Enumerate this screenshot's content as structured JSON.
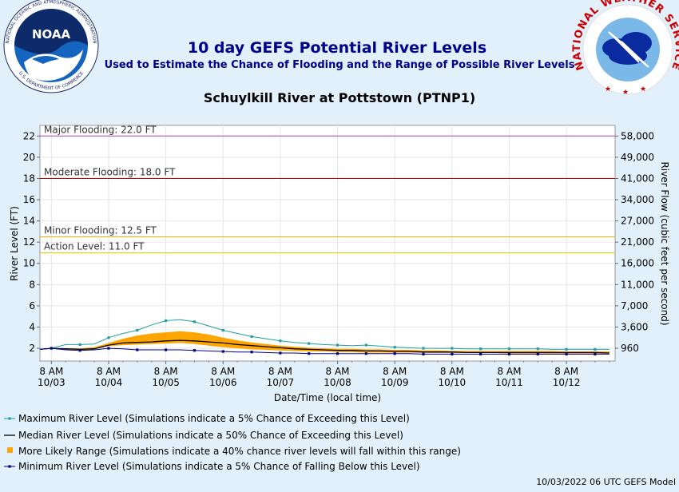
{
  "header": {
    "title": "10 day GEFS Potential River Levels",
    "subtitle": "Used to Estimate the Chance of Flooding and the Range of Possible River Levels",
    "noaa_text": "NOAA",
    "noaa_ring_top": "NATIONAL OCEANIC AND ATMOSPHERIC ADMINISTRATION",
    "noaa_ring_bottom": "U.S. DEPARTMENT OF COMMERCE",
    "nws_ring": "NATIONAL WEATHER SERVICE"
  },
  "footer": {
    "credit": "10/03/2022 06 UTC GEFS Model"
  },
  "colors": {
    "background": "#e1f0fb",
    "title": "#00008b",
    "range_fill": "#ffa500",
    "max_line": "#20a0a0",
    "median_line": "#000000",
    "min_line": "#00008b",
    "major": "#c040c0",
    "moderate": "#cc0000",
    "minor": "#ffb000",
    "action": "#e8d000"
  },
  "chart_data": {
    "type": "line",
    "title": "Schuylkill River at Pottstown (PTNP1)",
    "xlabel": "Date/Time (local time)",
    "ylabel": "River Level (FT)",
    "y2label": "River Flow (cubic feet per second)",
    "ylim": [
      0.8,
      23
    ],
    "yticks": [
      2,
      4,
      6,
      8,
      10,
      12,
      14,
      16,
      18,
      20,
      22
    ],
    "y2ticks": [
      {
        "level": 2,
        "label": "960"
      },
      {
        "level": 4,
        "label": "3,600"
      },
      {
        "level": 6,
        "label": "7,000"
      },
      {
        "level": 8,
        "label": "11,000"
      },
      {
        "level": 10,
        "label": "16,000"
      },
      {
        "level": 12,
        "label": "21,000"
      },
      {
        "level": 14,
        "label": "27,000"
      },
      {
        "level": 16,
        "label": "34,000"
      },
      {
        "level": 18,
        "label": "41,000"
      },
      {
        "level": 20,
        "label": "49,000"
      },
      {
        "level": 22,
        "label": "58,000"
      }
    ],
    "xlim": [
      -0.2,
      9.85
    ],
    "xticks": [
      {
        "x": 0,
        "time": "8 AM",
        "date": "10/03"
      },
      {
        "x": 1,
        "time": "8 AM",
        "date": "10/04"
      },
      {
        "x": 2,
        "time": "8 AM",
        "date": "10/05"
      },
      {
        "x": 3,
        "time": "8 AM",
        "date": "10/06"
      },
      {
        "x": 4,
        "time": "8 AM",
        "date": "10/07"
      },
      {
        "x": 5,
        "time": "8 AM",
        "date": "10/08"
      },
      {
        "x": 6,
        "time": "8 AM",
        "date": "10/09"
      },
      {
        "x": 7,
        "time": "8 AM",
        "date": "10/10"
      },
      {
        "x": 8,
        "time": "8 AM",
        "date": "10/11"
      },
      {
        "x": 9,
        "time": "8 AM",
        "date": "10/12"
      }
    ],
    "thresholds": [
      {
        "name": "Major Flooding",
        "label": "Major Flooding: 22.0 FT",
        "value": 22.0,
        "color": "#c040c0"
      },
      {
        "name": "Moderate Flooding",
        "label": "Moderate Flooding: 18.0 FT",
        "value": 18.0,
        "color": "#cc0000"
      },
      {
        "name": "Minor Flooding",
        "label": "Minor Flooding: 12.5 FT",
        "value": 12.5,
        "color": "#ffb000"
      },
      {
        "name": "Action Level",
        "label": "Action Level: 11.0 FT",
        "value": 11.0,
        "color": "#e8d000"
      }
    ],
    "x": [
      -0.2,
      0.0,
      0.25,
      0.5,
      0.75,
      1.0,
      1.25,
      1.5,
      1.75,
      2.0,
      2.25,
      2.5,
      2.75,
      3.0,
      3.25,
      3.5,
      3.75,
      4.0,
      4.25,
      4.5,
      4.75,
      5.0,
      5.25,
      5.5,
      5.75,
      6.0,
      6.25,
      6.5,
      6.75,
      7.0,
      7.25,
      7.5,
      7.75,
      8.0,
      8.25,
      8.5,
      8.75,
      9.0,
      9.25,
      9.5,
      9.75
    ],
    "series": [
      {
        "name": "Maximum River Level (Simulations indicate a 5% Chance of Exceeding this Level)",
        "role": "max",
        "values": [
          1.9,
          2.0,
          2.35,
          2.35,
          2.4,
          3.0,
          3.4,
          3.7,
          4.2,
          4.6,
          4.7,
          4.5,
          4.1,
          3.7,
          3.4,
          3.1,
          2.9,
          2.7,
          2.55,
          2.45,
          2.35,
          2.3,
          2.25,
          2.3,
          2.2,
          2.1,
          2.05,
          2.0,
          2.0,
          2.0,
          1.95,
          1.95,
          1.95,
          1.95,
          1.95,
          1.95,
          1.9,
          1.9,
          1.9,
          1.9,
          1.9
        ]
      },
      {
        "name": "Median River Level (Simulations indicate a 50% Chance of Exceeding this Level)",
        "role": "median",
        "values": [
          1.9,
          2.0,
          1.95,
          1.9,
          1.95,
          2.3,
          2.5,
          2.55,
          2.6,
          2.7,
          2.75,
          2.7,
          2.6,
          2.5,
          2.35,
          2.25,
          2.15,
          2.05,
          1.95,
          1.9,
          1.85,
          1.8,
          1.8,
          1.75,
          1.75,
          1.7,
          1.7,
          1.65,
          1.65,
          1.65,
          1.6,
          1.6,
          1.6,
          1.6,
          1.6,
          1.6,
          1.6,
          1.6,
          1.6,
          1.6,
          1.55
        ]
      },
      {
        "name": "More Likely Range (Simulations indicate a 40% chance river levels will fall within this range)",
        "role": "range",
        "lower": [
          1.9,
          2.0,
          1.9,
          1.85,
          1.9,
          2.2,
          2.3,
          2.35,
          2.4,
          2.45,
          2.5,
          2.4,
          2.25,
          2.1,
          2.0,
          1.9,
          1.85,
          1.8,
          1.75,
          1.7,
          1.7,
          1.65,
          1.65,
          1.6,
          1.6,
          1.6,
          1.6,
          1.55,
          1.55,
          1.55,
          1.55,
          1.55,
          1.55,
          1.5,
          1.5,
          1.5,
          1.5,
          1.5,
          1.5,
          1.5,
          1.5
        ],
        "upper": [
          1.9,
          2.0,
          2.0,
          2.0,
          2.1,
          2.5,
          2.9,
          3.2,
          3.4,
          3.5,
          3.6,
          3.5,
          3.3,
          3.0,
          2.75,
          2.55,
          2.4,
          2.25,
          2.15,
          2.05,
          2.0,
          1.95,
          1.95,
          1.9,
          1.9,
          1.85,
          1.85,
          1.8,
          1.8,
          1.75,
          1.75,
          1.75,
          1.75,
          1.75,
          1.75,
          1.75,
          1.75,
          1.7,
          1.7,
          1.7,
          1.7
        ]
      },
      {
        "name": "Minimum River Level (Simulations indicate a 5% Chance of Falling Below this Level)",
        "role": "min",
        "values": [
          1.9,
          2.0,
          1.85,
          1.8,
          1.85,
          2.0,
          1.95,
          1.85,
          1.85,
          1.85,
          1.85,
          1.8,
          1.75,
          1.7,
          1.65,
          1.65,
          1.6,
          1.55,
          1.55,
          1.5,
          1.5,
          1.5,
          1.5,
          1.5,
          1.5,
          1.5,
          1.5,
          1.45,
          1.45,
          1.45,
          1.45,
          1.45,
          1.45,
          1.45,
          1.45,
          1.45,
          1.45,
          1.45,
          1.45,
          1.45,
          1.45
        ]
      }
    ]
  }
}
